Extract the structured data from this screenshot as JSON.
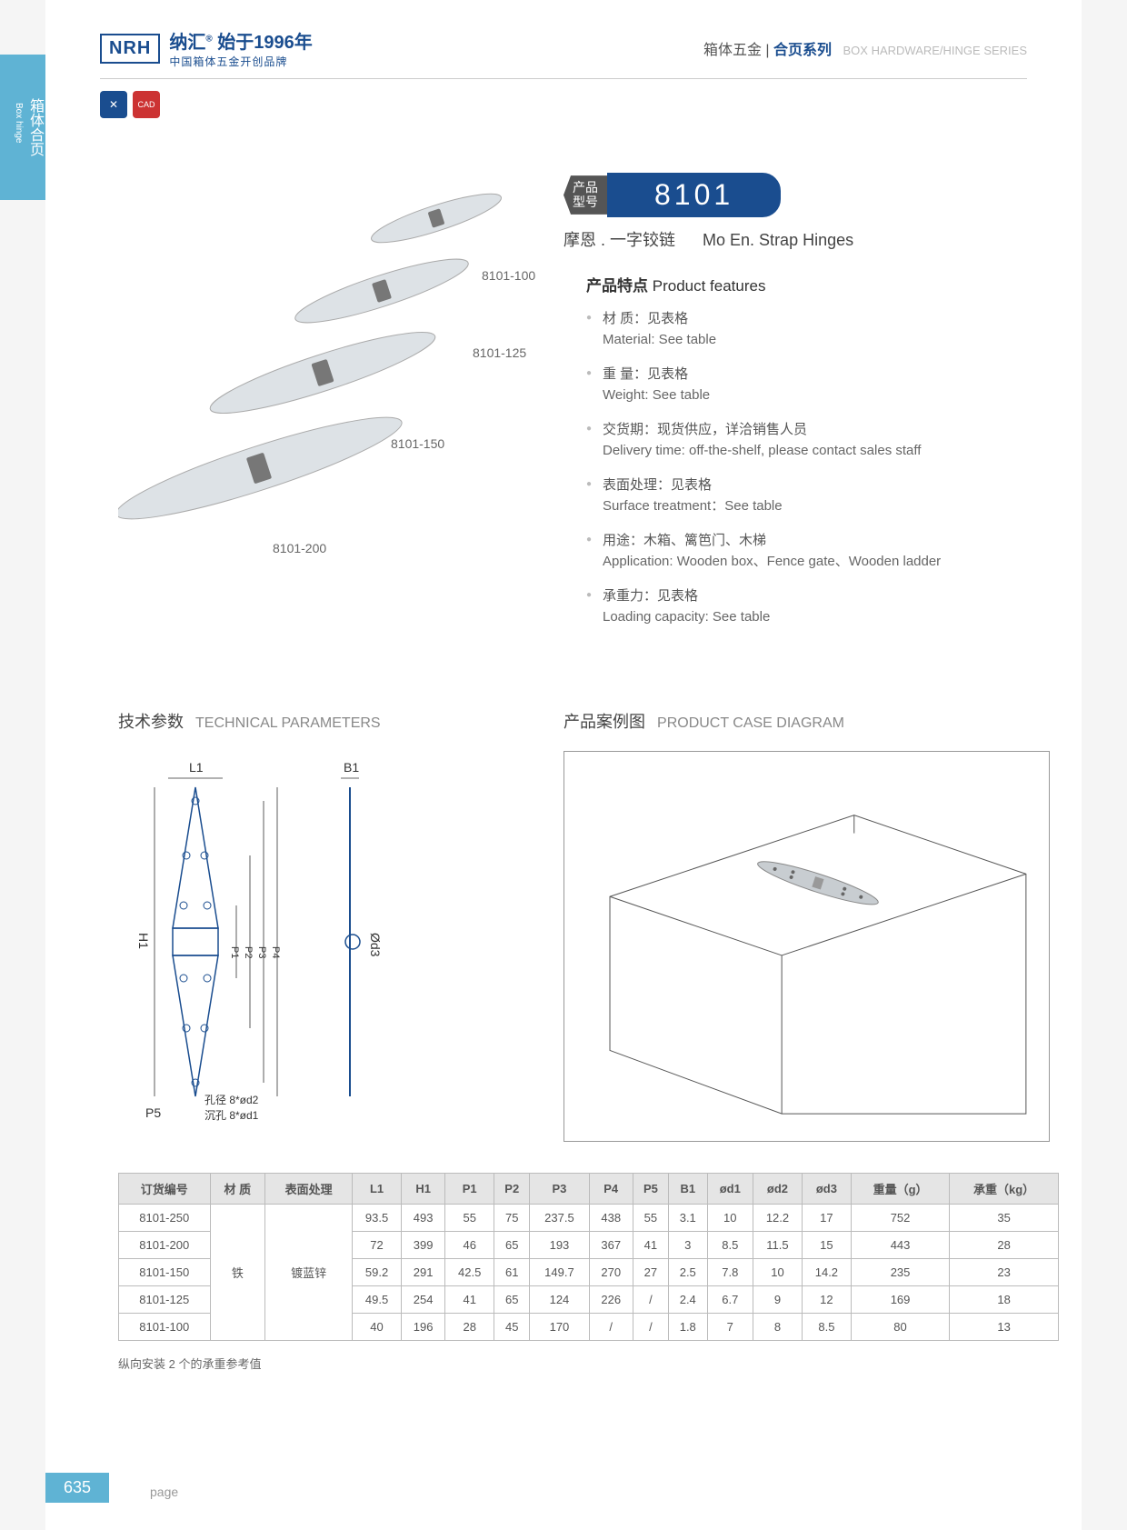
{
  "sideTab": {
    "cn": "箱体合页",
    "en": "Box hinge"
  },
  "logo": {
    "brand": "NRH",
    "line1_cn": "纳汇",
    "line1_tag": "始于1996年",
    "line2": "中国箱体五金开创品牌"
  },
  "headerRight": {
    "cn1": "箱体五金",
    "cn2": "合页系列",
    "en": "BOX HARDWARE/HINGE SERIES"
  },
  "badges": {
    "cad": "CAD"
  },
  "product": {
    "title_tag": "产品\n型号",
    "number": "8101",
    "subtitle_cn": "摩恩 . 一字铰链",
    "subtitle_en": "Mo En. Strap Hinges",
    "imageLabels": [
      "8101-100",
      "8101-125",
      "8101-150",
      "8101-200"
    ]
  },
  "features": {
    "title_cn": "产品特点",
    "title_en": "Product features",
    "items": [
      {
        "cn": "材 质：见表格",
        "en": "Material: See table"
      },
      {
        "cn": "重 量：见表格",
        "en": "Weight: See table"
      },
      {
        "cn": "交货期：现货供应，详洽销售人员",
        "en": "Delivery time: off-the-shelf, please contact sales staff"
      },
      {
        "cn": "表面处理：见表格",
        "en": "Surface treatment：See table"
      },
      {
        "cn": "用途：木箱、篱笆门、木梯",
        "en": "Application: Wooden box、Fence gate、Wooden ladder"
      },
      {
        "cn": "承重力：见表格",
        "en": "Loading capacity: See table"
      }
    ]
  },
  "techSection": {
    "title_cn": "技术参数",
    "title_en": "TECHNICAL PARAMETERS"
  },
  "techDims": {
    "L1": "L1",
    "B1": "B1",
    "H1": "H1",
    "P1": "P1",
    "P2": "P2",
    "P3": "P3",
    "P4": "P4",
    "P5": "P5",
    "d3": "Ød3",
    "note1": "孔径 8*ød2",
    "note2": "沉孔 8*ød1"
  },
  "caseSection": {
    "title_cn": "产品案例图",
    "title_en": "PRODUCT CASE DIAGRAM"
  },
  "table": {
    "columns": [
      "订货编号",
      "材 质",
      "表面处理",
      "L1",
      "H1",
      "P1",
      "P2",
      "P3",
      "P4",
      "P5",
      "B1",
      "ød1",
      "ød2",
      "ød3",
      "重量（g）",
      "承重（kg）"
    ],
    "material": "铁",
    "surface": "镀蓝锌",
    "rows": [
      [
        "8101-250",
        "93.5",
        "493",
        "55",
        "75",
        "237.5",
        "438",
        "55",
        "3.1",
        "10",
        "12.2",
        "17",
        "752",
        "35"
      ],
      [
        "8101-200",
        "72",
        "399",
        "46",
        "65",
        "193",
        "367",
        "41",
        "3",
        "8.5",
        "11.5",
        "15",
        "443",
        "28"
      ],
      [
        "8101-150",
        "59.2",
        "291",
        "42.5",
        "61",
        "149.7",
        "270",
        "27",
        "2.5",
        "7.8",
        "10",
        "14.2",
        "235",
        "23"
      ],
      [
        "8101-125",
        "49.5",
        "254",
        "41",
        "65",
        "124",
        "226",
        "/",
        "2.4",
        "6.7",
        "9",
        "12",
        "169",
        "18"
      ],
      [
        "8101-100",
        "40",
        "196",
        "28",
        "45",
        "170",
        "/",
        "/",
        "1.8",
        "7",
        "8",
        "8.5",
        "80",
        "13"
      ]
    ],
    "note": "纵向安装 2 个的承重参考值"
  },
  "pageNum": "635",
  "pageLabel": "page",
  "colors": {
    "primary": "#1a4d8f",
    "accent": "#5fb3d4",
    "headerBg": "#e5e5e5"
  }
}
